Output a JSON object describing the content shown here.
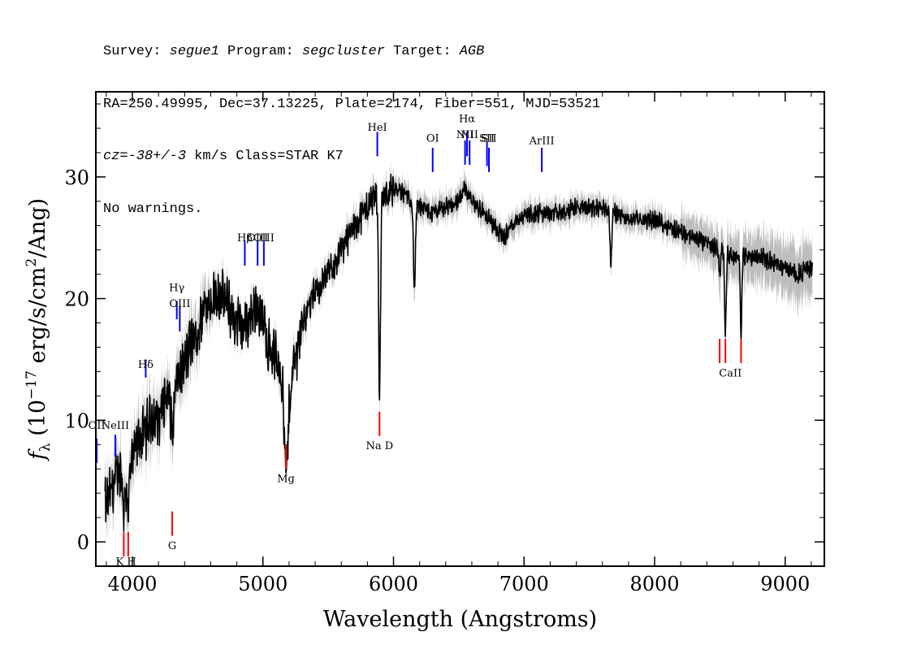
{
  "header": {
    "line1": {
      "survey_label": "Survey: ",
      "survey": "segue1",
      "program_label": " Program: ",
      "program": "segcluster",
      "target_label": " Target: ",
      "target": "AGB"
    },
    "line2": "RA=250.49995, Dec=37.13225, Plate=2174, Fiber=551, MJD=53521",
    "line3": {
      "cz_label": "cz",
      "cz_value": "=-38+/-3",
      "rest": " km/s Class=STAR K7"
    },
    "line4": "No warnings."
  },
  "chart_data": {
    "type": "line",
    "xlabel": "Wavelength (Angstroms)",
    "ylabel": "f_λ (10^-17 erg/s/cm^2/Ang)",
    "xlim": [
      3720,
      9300
    ],
    "ylim": [
      -2,
      37
    ],
    "x_ticks": [
      4000,
      5000,
      6000,
      7000,
      8000,
      9000
    ],
    "y_ticks": [
      0,
      10,
      20,
      30
    ],
    "flux_anchor_points": [
      [
        3800,
        3.0
      ],
      [
        3850,
        4.5
      ],
      [
        3900,
        6.0
      ],
      [
        3950,
        5.0
      ],
      [
        4000,
        6.5
      ],
      [
        4050,
        8.5
      ],
      [
        4100,
        9.0
      ],
      [
        4150,
        10.5
      ],
      [
        4200,
        10.0
      ],
      [
        4250,
        12.0
      ],
      [
        4300,
        12.0
      ],
      [
        4350,
        13.5
      ],
      [
        4400,
        14.5
      ],
      [
        4450,
        16.5
      ],
      [
        4500,
        17.0
      ],
      [
        4550,
        19.5
      ],
      [
        4600,
        20.0
      ],
      [
        4650,
        20.5
      ],
      [
        4700,
        20.0
      ],
      [
        4750,
        19.0
      ],
      [
        4800,
        18.0
      ],
      [
        4850,
        17.5
      ],
      [
        4900,
        18.5
      ],
      [
        4950,
        19.5
      ],
      [
        5000,
        18.0
      ],
      [
        5050,
        16.0
      ],
      [
        5100,
        15.0
      ],
      [
        5150,
        14.0
      ],
      [
        5180,
        10.0
      ],
      [
        5220,
        13.5
      ],
      [
        5300,
        18.0
      ],
      [
        5400,
        20.5
      ],
      [
        5500,
        22.0
      ],
      [
        5600,
        24.0
      ],
      [
        5700,
        26.0
      ],
      [
        5800,
        27.5
      ],
      [
        5850,
        28.5
      ],
      [
        5900,
        28.5
      ],
      [
        6000,
        29.0
      ],
      [
        6100,
        28.5
      ],
      [
        6200,
        27.5
      ],
      [
        6300,
        27.0
      ],
      [
        6400,
        27.5
      ],
      [
        6500,
        28.0
      ],
      [
        6550,
        29.0
      ],
      [
        6600,
        28.0
      ],
      [
        6700,
        27.0
      ],
      [
        6800,
        25.5
      ],
      [
        6850,
        25.0
      ],
      [
        6900,
        26.0
      ],
      [
        7000,
        27.0
      ],
      [
        7100,
        27.0
      ],
      [
        7200,
        27.0
      ],
      [
        7300,
        27.0
      ],
      [
        7400,
        27.5
      ],
      [
        7500,
        27.5
      ],
      [
        7600,
        27.5
      ],
      [
        7700,
        27.0
      ],
      [
        7800,
        26.5
      ],
      [
        7900,
        26.5
      ],
      [
        8000,
        26.5
      ],
      [
        8100,
        26.0
      ],
      [
        8200,
        25.5
      ],
      [
        8300,
        25.0
      ],
      [
        8400,
        24.5
      ],
      [
        8500,
        24.0
      ],
      [
        8600,
        23.5
      ],
      [
        8700,
        23.5
      ],
      [
        8800,
        23.5
      ],
      [
        8900,
        23.0
      ],
      [
        9000,
        22.5
      ],
      [
        9100,
        22.0
      ],
      [
        9200,
        22.5
      ]
    ],
    "absorption_features": [
      {
        "wave": 3934,
        "depth": 2.5,
        "width": 8
      },
      {
        "wave": 3968,
        "depth": 2.5,
        "width": 8
      },
      {
        "wave": 4308,
        "depth": 3.0,
        "width": 12
      },
      {
        "wave": 5175,
        "depth": 5.0,
        "width": 15
      },
      {
        "wave": 5893,
        "depth": 17.0,
        "width": 7
      },
      {
        "wave": 6160,
        "depth": 7.0,
        "width": 8
      },
      {
        "wave": 7665,
        "depth": 4.5,
        "width": 6
      },
      {
        "wave": 8498,
        "depth": 2.0,
        "width": 5
      },
      {
        "wave": 8542,
        "depth": 6.5,
        "width": 6
      },
      {
        "wave": 8662,
        "depth": 6.5,
        "width": 6
      }
    ],
    "emission_lines": [
      {
        "label": "OII",
        "wave": 3727,
        "y": 6.5,
        "h": 2.0,
        "label_y": 9.3
      },
      {
        "label": "NeIII",
        "wave": 3869,
        "y": 7.0,
        "h": 1.8,
        "label_y": 9.3
      },
      {
        "label": "Hδ",
        "wave": 4102,
        "y": 13.5,
        "h": 1.5,
        "label_y": 14.3
      },
      {
        "label": "Hγ",
        "wave": 4340,
        "y": 18.3,
        "h": 1.5,
        "label_y": 20.6
      },
      {
        "label": "OIII",
        "wave": 4363,
        "y": 17.3,
        "h": 2.0,
        "label_y": 19.3
      },
      {
        "label": "Hβ",
        "wave": 4861,
        "y": 22.7,
        "h": 2.0,
        "label_y": 24.7
      },
      {
        "label": "OIII",
        "wave": 4959,
        "y": 22.7,
        "h": 2.0,
        "label_y": 24.7
      },
      {
        "label": "OIII",
        "wave": 5007,
        "y": 22.7,
        "h": 2.0,
        "label_y": 24.7
      },
      {
        "label": "HeI",
        "wave": 5876,
        "y": 31.7,
        "h": 2.0,
        "label_y": 33.8
      },
      {
        "label": "OI",
        "wave": 6300,
        "y": 30.4,
        "h": 2.0,
        "label_y": 32.9
      },
      {
        "label": "NII",
        "wave": 6548,
        "y": 31.0,
        "h": 2.0,
        "label_y": 33.2
      },
      {
        "label": "Hα",
        "wave": 6563,
        "y": 31.7,
        "h": 2.0,
        "label_y": 34.5
      },
      {
        "label": "NII",
        "wave": 6583,
        "y": 31.0,
        "h": 2.0,
        "label_y": 33.2
      },
      {
        "label": "SII",
        "wave": 6716,
        "y": 30.9,
        "h": 2.0,
        "label_y": 32.9
      },
      {
        "label": "SII",
        "wave": 6731,
        "y": 30.4,
        "h": 2.0,
        "label_y": 32.9
      },
      {
        "label": "ArIII",
        "wave": 7136,
        "y": 30.4,
        "h": 2.0,
        "label_y": 32.7
      }
    ],
    "absorption_lines": [
      {
        "label": "K",
        "wave": 3934,
        "y": -1.2,
        "h": 2.0
      },
      {
        "label": "H",
        "wave": 3968,
        "y": -1.2,
        "h": 2.0
      },
      {
        "label": "G",
        "wave": 4305,
        "y": 0.5,
        "h": 2.0
      },
      {
        "label": "Mg",
        "wave": 5176,
        "y": 6.0,
        "h": 2.0
      },
      {
        "label": "Na D",
        "wave": 5893,
        "y": 8.7,
        "h": 2.0
      },
      {
        "label": "CaII",
        "wave": 8498,
        "y": 14.7,
        "h": 2.0
      },
      {
        "label": "CaII",
        "wave": 8542,
        "y": 14.7,
        "h": 2.0
      },
      {
        "label": "CaII",
        "wave": 8662,
        "y": 14.7,
        "h": 2.0
      }
    ],
    "absorption_label_positions": [
      {
        "text": "K H",
        "wave": 3951,
        "y": -1.9
      },
      {
        "text": "G",
        "wave": 4305,
        "y": -0.6
      },
      {
        "text": "Mg",
        "wave": 5176,
        "y": 4.9
      },
      {
        "text": "Na D",
        "wave": 5893,
        "y": 7.6
      },
      {
        "text": "CaII",
        "wave": 8580,
        "y": 13.6
      }
    ],
    "colors": {
      "flux": "#000000",
      "error": "#bdbdbd",
      "emission": "#0000ff",
      "absorption": "#ff0000"
    }
  }
}
